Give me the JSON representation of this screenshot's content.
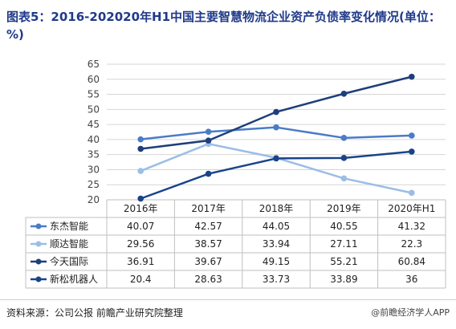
{
  "title": "图表5：2016-202020年H1中国主要智慧物流企业资产负债率变化情况(单位：%)",
  "source": "资料来源：公司公报 前瞻产业研究院整理",
  "brand": "@前瞻经济学人APP",
  "chart_data": {
    "type": "line",
    "categories": [
      "2016年",
      "2017年",
      "2018年",
      "2019年",
      "2020年H1"
    ],
    "ylim": [
      20,
      65
    ],
    "yticks": [
      20,
      25,
      30,
      35,
      40,
      45,
      50,
      55,
      60,
      65
    ],
    "grid": true,
    "legend": "table-bottom",
    "series": [
      {
        "name": "东杰智能",
        "color": "#4a7cc7",
        "values": [
          40.07,
          42.57,
          44.05,
          40.55,
          41.32
        ],
        "labels": [
          "40.07",
          "42.57",
          "44.05",
          "40.55",
          "41.32"
        ]
      },
      {
        "name": "顺达智能",
        "color": "#9cbde6",
        "values": [
          29.56,
          38.57,
          33.94,
          27.11,
          22.3
        ],
        "labels": [
          "29.56",
          "38.57",
          "33.94",
          "27.11",
          "22.3"
        ]
      },
      {
        "name": "今天国际",
        "color": "#1e3f7a",
        "values": [
          36.91,
          39.67,
          49.15,
          55.21,
          60.84
        ],
        "labels": [
          "36.91",
          "39.67",
          "49.15",
          "55.21",
          "60.84"
        ]
      },
      {
        "name": "新松机器人",
        "color": "#1a4488",
        "values": [
          20.4,
          28.63,
          33.73,
          33.89,
          36
        ],
        "labels": [
          "20.4",
          "28.63",
          "33.73",
          "33.89",
          "36"
        ]
      }
    ]
  }
}
